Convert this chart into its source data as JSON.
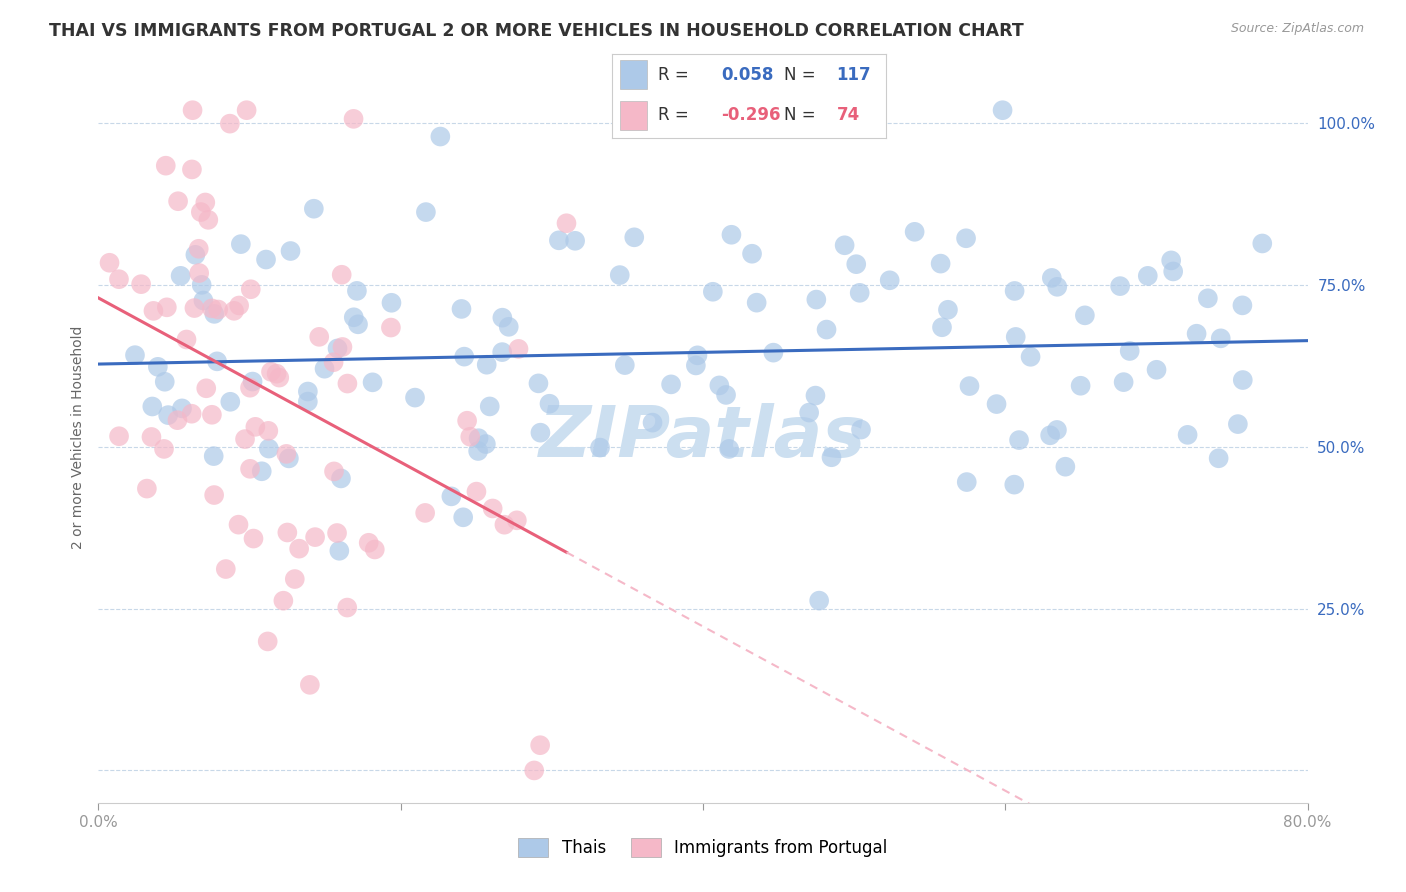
{
  "title": "THAI VS IMMIGRANTS FROM PORTUGAL 2 OR MORE VEHICLES IN HOUSEHOLD CORRELATION CHART",
  "source": "Source: ZipAtlas.com",
  "ylabel": "2 or more Vehicles in Household",
  "ytick_labels": [
    "",
    "25.0%",
    "50.0%",
    "75.0%",
    "100.0%"
  ],
  "ytick_values": [
    0.0,
    0.25,
    0.5,
    0.75,
    1.0
  ],
  "xlim": [
    0.0,
    0.8
  ],
  "ylim": [
    -0.05,
    1.08
  ],
  "watermark": "ZIPatlas",
  "thai_R": 0.058,
  "thai_N": 117,
  "portugal_R": -0.296,
  "portugal_N": 74,
  "thai_color": "#adc9e8",
  "thai_line_color": "#3a6bbf",
  "portugal_color": "#f5b8c8",
  "portugal_line_color": "#e8607a",
  "background_color": "#ffffff",
  "grid_color": "#c8d8e8",
  "title_fontsize": 12.5,
  "axis_label_fontsize": 10,
  "tick_fontsize": 11,
  "watermark_color": "#ccdff0",
  "watermark_fontsize": 52
}
